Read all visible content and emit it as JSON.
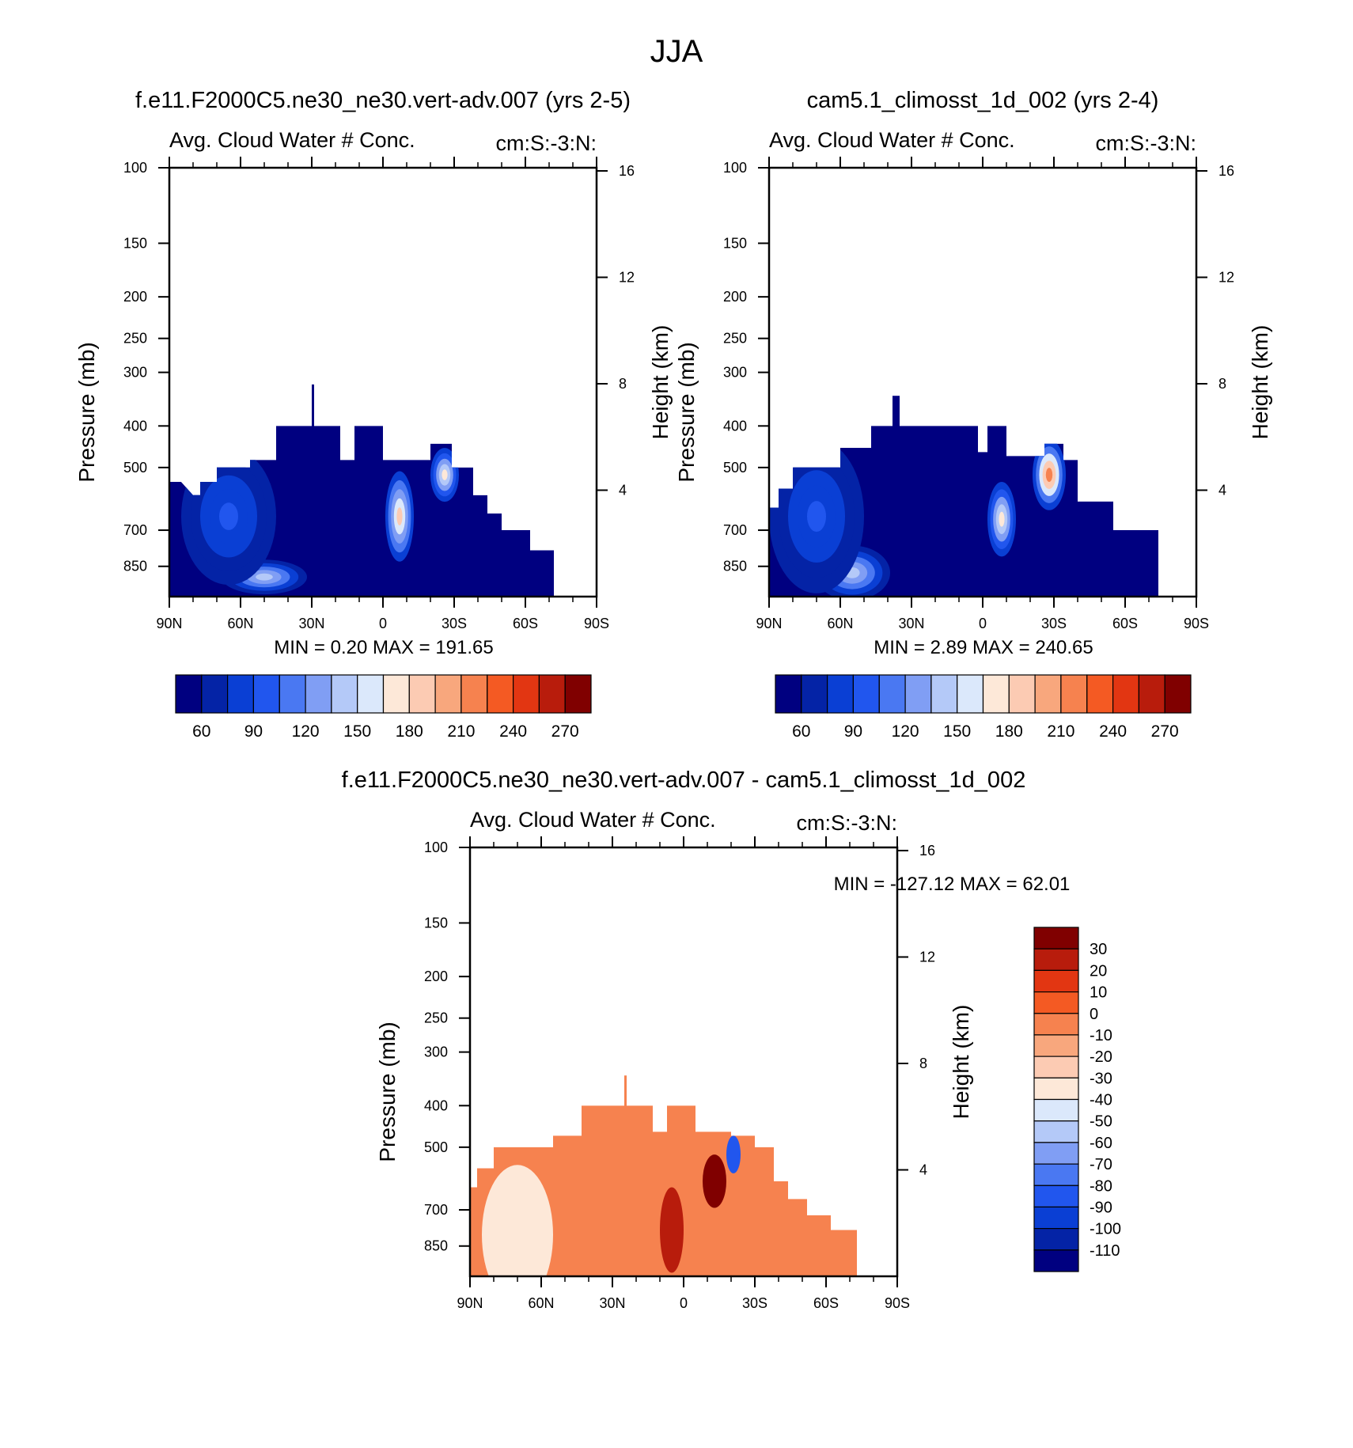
{
  "title": "JJA",
  "colors": {
    "seq": [
      "#000080",
      "#0423a6",
      "#0a3fd4",
      "#2156ee",
      "#4a78f2",
      "#809ef4",
      "#b4c9f8",
      "#dbe8fb",
      "#fde8d8",
      "#fccbb3",
      "#f8a77d",
      "#f6824f",
      "#f45a23",
      "#e23612",
      "#b81c0c",
      "#800000"
    ],
    "diff": [
      "#800000",
      "#b81c0c",
      "#e23612",
      "#f45a23",
      "#f6824f",
      "#f8a77d",
      "#fccbb3",
      "#fde8d8",
      "#dbe8fb",
      "#b4c9f8",
      "#809ef4",
      "#4a78f2",
      "#2156ee",
      "#0a3fd4",
      "#0423a6",
      "#000080"
    ]
  },
  "chart_data": [
    {
      "id": "panel-a",
      "type": "heatmap",
      "title": "f.e11.F2000C5.ne30_ne30.vert-adv.007 (yrs 2-5)",
      "left_string": "Avg. Cloud Water # Conc.",
      "right_string": "cm:S:-3:N:",
      "ylabel": "Pressure (mb)",
      "y2label": "Height (km)",
      "x_ticks": [
        "90N",
        "60N",
        "30N",
        "0",
        "30S",
        "60S",
        "90S"
      ],
      "x_range": [
        90,
        -90
      ],
      "y_ticks": [
        "100",
        "150",
        "200",
        "250",
        "300",
        "400",
        "500",
        "700",
        "850"
      ],
      "y_range": [
        100,
        1000
      ],
      "y2_ticks": [
        "16",
        "12",
        "8",
        "4"
      ],
      "min_max": "MIN =   0.20  MAX = 191.65",
      "colorbar_labels": [
        "60",
        "90",
        "120",
        "150",
        "180",
        "210",
        "240",
        "270"
      ],
      "field": {
        "top_boundary_mb": [
          [
            90,
            540
          ],
          [
            85,
            540
          ],
          [
            80,
            580
          ],
          [
            77,
            580
          ],
          [
            77,
            540
          ],
          [
            70,
            540
          ],
          [
            70,
            500
          ],
          [
            56,
            500
          ],
          [
            56,
            480
          ],
          [
            45,
            480
          ],
          [
            45,
            400
          ],
          [
            30,
            400
          ],
          [
            30,
            320
          ],
          [
            29,
            320
          ],
          [
            29,
            400
          ],
          [
            18,
            400
          ],
          [
            18,
            480
          ],
          [
            12,
            480
          ],
          [
            12,
            400
          ],
          [
            0,
            400
          ],
          [
            0,
            480
          ],
          [
            -20,
            480
          ],
          [
            -20,
            440
          ],
          [
            -29,
            440
          ],
          [
            -29,
            500
          ],
          [
            -38,
            500
          ],
          [
            -38,
            580
          ],
          [
            -44,
            580
          ],
          [
            -44,
            640
          ],
          [
            -50,
            640
          ],
          [
            -50,
            700
          ],
          [
            -62,
            700
          ],
          [
            -62,
            780
          ],
          [
            -72,
            780
          ],
          [
            -72,
            930
          ],
          [
            -72,
            1000
          ]
        ],
        "blobs": [
          {
            "lat": -7,
            "p": 650,
            "rx": 6,
            "rp": 140,
            "level": 9
          },
          {
            "lat": -26,
            "p": 520,
            "rx": 6,
            "rp": 70,
            "level": 8
          },
          {
            "lat": 50,
            "p": 900,
            "rx": 18,
            "rp": 80,
            "level": 6
          },
          {
            "lat": 65,
            "p": 650,
            "rx": 20,
            "rp": 200,
            "level": 3
          }
        ]
      }
    },
    {
      "id": "panel-b",
      "type": "heatmap",
      "title": "cam5.1_climosst_1d_002 (yrs 2-4)",
      "left_string": "Avg. Cloud Water # Conc.",
      "right_string": "cm:S:-3:N:",
      "ylabel": "Pressure (mb)",
      "y2label": "Height (km)",
      "x_ticks": [
        "90N",
        "60N",
        "30N",
        "0",
        "30S",
        "60S",
        "90S"
      ],
      "x_range": [
        90,
        -90
      ],
      "y_ticks": [
        "100",
        "150",
        "200",
        "250",
        "300",
        "400",
        "500",
        "700",
        "850"
      ],
      "y_range": [
        100,
        1000
      ],
      "y2_ticks": [
        "16",
        "12",
        "8",
        "4"
      ],
      "min_max": "MIN =   2.89  MAX = 240.65",
      "colorbar_labels": [
        "60",
        "90",
        "120",
        "150",
        "180",
        "210",
        "240",
        "270"
      ],
      "field": {
        "top_boundary_mb": [
          [
            90,
            620
          ],
          [
            86,
            620
          ],
          [
            86,
            560
          ],
          [
            80,
            560
          ],
          [
            80,
            500
          ],
          [
            60,
            500
          ],
          [
            60,
            450
          ],
          [
            47,
            450
          ],
          [
            47,
            400
          ],
          [
            38,
            400
          ],
          [
            38,
            340
          ],
          [
            35,
            340
          ],
          [
            35,
            400
          ],
          [
            2,
            400
          ],
          [
            2,
            460
          ],
          [
            -2,
            460
          ],
          [
            -2,
            400
          ],
          [
            -10,
            400
          ],
          [
            -10,
            470
          ],
          [
            -18,
            470
          ],
          [
            -18,
            470
          ],
          [
            -26,
            470
          ],
          [
            -26,
            440
          ],
          [
            -34,
            440
          ],
          [
            -34,
            480
          ],
          [
            -40,
            480
          ],
          [
            -40,
            600
          ],
          [
            -55,
            600
          ],
          [
            -55,
            700
          ],
          [
            -74,
            700
          ],
          [
            -74,
            930
          ],
          [
            -74,
            1000
          ]
        ],
        "blobs": [
          {
            "lat": -28,
            "p": 520,
            "rx": 7,
            "rp": 90,
            "level": 11
          },
          {
            "lat": -8,
            "p": 660,
            "rx": 6,
            "rp": 120,
            "level": 8
          },
          {
            "lat": 55,
            "p": 880,
            "rx": 16,
            "rp": 120,
            "level": 6
          },
          {
            "lat": 70,
            "p": 650,
            "rx": 20,
            "rp": 220,
            "level": 3
          }
        ]
      }
    },
    {
      "id": "panel-c",
      "type": "heatmap",
      "title": "f.e11.F2000C5.ne30_ne30.vert-adv.007 - cam5.1_climosst_1d_002",
      "left_string": "Avg. Cloud Water # Conc.",
      "right_string": "cm:S:-3:N:",
      "ylabel": "Pressure (mb)",
      "y2label": "Height (km)",
      "x_ticks": [
        "90N",
        "60N",
        "30N",
        "0",
        "30S",
        "60S",
        "90S"
      ],
      "x_range": [
        90,
        -90
      ],
      "y_ticks": [
        "100",
        "150",
        "200",
        "250",
        "300",
        "400",
        "500",
        "700",
        "850"
      ],
      "y_range": [
        100,
        1000
      ],
      "y2_ticks": [
        "16",
        "12",
        "8",
        "4"
      ],
      "min_max": "MIN = -127.12  MAX =  62.01",
      "colorbar_labels": [
        "30",
        "20",
        "10",
        "0",
        "-10",
        "-20",
        "-30",
        "-40",
        "-50",
        "-60",
        "-70",
        "-80",
        "-90",
        "-100",
        "-110"
      ],
      "field": {
        "top_boundary_mb": [
          [
            90,
            620
          ],
          [
            87,
            620
          ],
          [
            87,
            560
          ],
          [
            80,
            560
          ],
          [
            80,
            500
          ],
          [
            55,
            500
          ],
          [
            55,
            470
          ],
          [
            43,
            470
          ],
          [
            43,
            400
          ],
          [
            25,
            400
          ],
          [
            25,
            340
          ],
          [
            24,
            340
          ],
          [
            24,
            400
          ],
          [
            13,
            400
          ],
          [
            13,
            460
          ],
          [
            7,
            460
          ],
          [
            7,
            400
          ],
          [
            -5,
            400
          ],
          [
            -5,
            460
          ],
          [
            -20,
            460
          ],
          [
            -20,
            470
          ],
          [
            -30,
            470
          ],
          [
            -30,
            500
          ],
          [
            -38,
            500
          ],
          [
            -38,
            600
          ],
          [
            -44,
            600
          ],
          [
            -44,
            660
          ],
          [
            -52,
            660
          ],
          [
            -52,
            720
          ],
          [
            -62,
            720
          ],
          [
            -62,
            780
          ],
          [
            -73,
            780
          ],
          [
            -73,
            930
          ],
          [
            -73,
            1000
          ]
        ],
        "blobs": [
          {
            "lat": 70,
            "p": 800,
            "rx": 15,
            "rp": 250,
            "level": 7
          },
          {
            "lat": -13,
            "p": 600,
            "rx": 5,
            "rp": 80,
            "level": 0
          },
          {
            "lat": -21,
            "p": 520,
            "rx": 3,
            "rp": 50,
            "level": 12
          },
          {
            "lat": 5,
            "p": 780,
            "rx": 5,
            "rp": 160,
            "level": 1
          }
        ]
      }
    }
  ]
}
